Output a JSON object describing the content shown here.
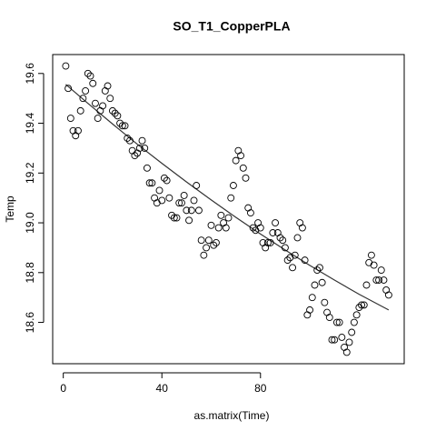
{
  "chart_data": {
    "type": "scatter",
    "title": "SO_T1_CopperPLA",
    "xlabel": "as.matrix(Time)",
    "ylabel": "Temp",
    "x": [
      1,
      2,
      3,
      4,
      5,
      6,
      7,
      8,
      9,
      10,
      11,
      12,
      13,
      14,
      15,
      16,
      17,
      18,
      19,
      20,
      21,
      22,
      23,
      24,
      25,
      26,
      27,
      28,
      29,
      30,
      31,
      32,
      33,
      34,
      35,
      36,
      37,
      38,
      39,
      40,
      41,
      42,
      43,
      44,
      45,
      46,
      47,
      48,
      49,
      50,
      51,
      52,
      53,
      54,
      55,
      56,
      57,
      58,
      59,
      60,
      61,
      62,
      63,
      64,
      65,
      66,
      67,
      68,
      69,
      70,
      71,
      72,
      73,
      74,
      75,
      76,
      77,
      78,
      79,
      80,
      81,
      82,
      83,
      84,
      85,
      86,
      87,
      88,
      89,
      90,
      91,
      92,
      93,
      94,
      95,
      96,
      97,
      98,
      99,
      100,
      101,
      102,
      103,
      104,
      105,
      106,
      107,
      108,
      109,
      110,
      111,
      112,
      113,
      114,
      115,
      116,
      117,
      118,
      119,
      120,
      121,
      122,
      123,
      124,
      125,
      126,
      127,
      128,
      129,
      130,
      131,
      132
    ],
    "values": [
      19.63,
      19.54,
      19.42,
      19.37,
      19.35,
      19.37,
      19.45,
      19.5,
      19.53,
      19.6,
      19.59,
      19.56,
      19.48,
      19.42,
      19.45,
      19.47,
      19.53,
      19.55,
      19.5,
      19.45,
      19.44,
      19.43,
      19.4,
      19.39,
      19.39,
      19.34,
      19.33,
      19.29,
      19.27,
      19.28,
      19.3,
      19.33,
      19.3,
      19.22,
      19.16,
      19.16,
      19.1,
      19.08,
      19.13,
      19.09,
      19.18,
      19.17,
      19.1,
      19.03,
      19.02,
      19.02,
      19.08,
      19.08,
      19.11,
      19.05,
      19.01,
      19.05,
      19.09,
      19.15,
      19.05,
      18.93,
      18.87,
      18.9,
      18.93,
      18.99,
      18.91,
      18.92,
      18.98,
      19.03,
      19.0,
      18.98,
      19.02,
      19.1,
      19.15,
      19.25,
      19.29,
      19.27,
      19.22,
      19.18,
      19.06,
      19.04,
      18.98,
      18.97,
      19.0,
      18.98,
      18.92,
      18.9,
      18.92,
      18.92,
      18.96,
      19.0,
      18.96,
      18.94,
      18.93,
      18.9,
      18.85,
      18.86,
      18.82,
      18.87,
      18.94,
      19.0,
      18.98,
      18.85,
      18.63,
      18.65,
      18.7,
      18.75,
      18.81,
      18.82,
      18.76,
      18.68,
      18.64,
      18.62,
      18.53,
      18.53,
      18.6,
      18.6,
      18.54,
      18.5,
      18.48,
      18.52,
      18.56,
      18.6,
      18.63,
      18.66,
      18.67,
      18.67,
      18.75,
      18.84,
      18.87,
      18.83,
      18.77,
      18.77,
      18.81,
      18.77,
      18.73,
      18.71
    ],
    "fit": {
      "x": [
        1,
        10,
        20,
        30,
        40,
        50,
        60,
        70,
        80,
        90,
        100,
        110,
        120,
        132
      ],
      "values": [
        19.556,
        19.48,
        19.397,
        19.316,
        19.239,
        19.164,
        19.092,
        19.022,
        18.955,
        18.891,
        18.829,
        18.77,
        18.713,
        18.65
      ]
    },
    "xlim": [
      -4.3,
      138.3
    ],
    "ylim": [
      18.434,
      19.676
    ],
    "xticks": [
      0,
      40,
      80
    ],
    "yticks": [
      18.6,
      18.8,
      {
        "value": 19,
        "label": "19.0"
      },
      19.2,
      19.4,
      19.6
    ]
  }
}
